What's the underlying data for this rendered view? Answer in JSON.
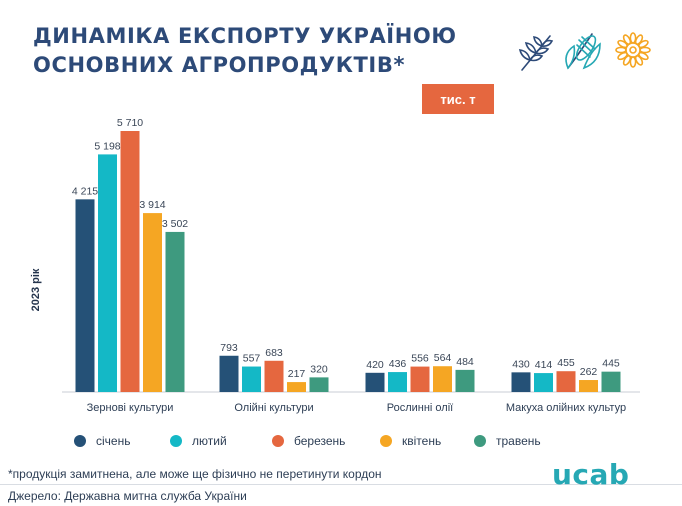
{
  "header": {
    "title_line1": "ДИНАМІКА ЕКСПОРТУ УКРАЇНОЮ",
    "title_line2": "ОСНОВНИХ АГРОПРОДУКТІВ*",
    "icons": [
      "wheat-icon",
      "corn-icon",
      "sunflower-icon"
    ]
  },
  "unit_badge": "тис. т",
  "chart_data": {
    "type": "bar",
    "categories": [
      "Зернові культури",
      "Олійні культури",
      "Рослинні олії",
      "Макуха олійних культур"
    ],
    "series": [
      {
        "name": "січень",
        "values": [
          4215,
          793,
          420,
          430
        ],
        "labels": [
          "4 215",
          "793",
          "420",
          "430"
        ],
        "color": "#255177"
      },
      {
        "name": "лютий",
        "values": [
          5198,
          557,
          436,
          414
        ],
        "labels": [
          "5 198",
          "557",
          "436",
          "414"
        ],
        "color": "#14b8c6"
      },
      {
        "name": "березень",
        "values": [
          5710,
          683,
          556,
          455
        ],
        "labels": [
          "5 710",
          "683",
          "556",
          "455"
        ],
        "color": "#e5673f"
      },
      {
        "name": "квітень",
        "values": [
          3914,
          217,
          564,
          262
        ],
        "labels": [
          "3 914",
          "217",
          "564",
          "262"
        ],
        "color": "#f5a623"
      },
      {
        "name": "травень",
        "values": [
          3502,
          320,
          484,
          445
        ],
        "labels": [
          "3 502",
          "320",
          "484",
          "445"
        ],
        "color": "#3e9a7f"
      }
    ],
    "ylabel": "2023 рік",
    "ylim": [
      0,
      5710
    ],
    "grid": false,
    "legend_position": "bottom"
  },
  "footnote": "*продукція замитнена, але може ще фізично не перетинути кордон",
  "source": "Джерело: Державна митна служба України",
  "logo": "ucab",
  "colors": {
    "title": "#2d4a78",
    "accent": "#e5673f",
    "logo": "#26a8b4"
  }
}
